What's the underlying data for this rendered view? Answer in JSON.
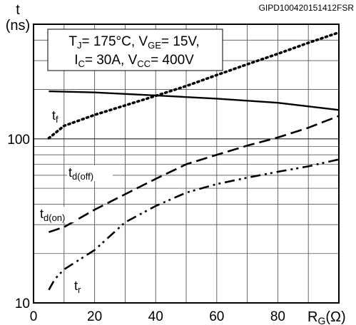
{
  "figure_id": "GIPD100420151412FSR",
  "y_axis_title_line1": "t",
  "y_axis_title_line2": "(ns)",
  "x_axis_title_main": "R",
  "x_axis_title_sub": "G",
  "x_axis_title_unit": "(Ω)",
  "conditions": {
    "line1": [
      {
        "text": "T",
        "sub": false
      },
      {
        "text": "J",
        "sub": true
      },
      {
        "text": "= 175°C, V",
        "sub": false
      },
      {
        "text": "GE",
        "sub": true
      },
      {
        "text": "= 15V,",
        "sub": false
      }
    ],
    "line2": [
      {
        "text": "I",
        "sub": false
      },
      {
        "text": "C",
        "sub": true
      },
      {
        "text": "= 30A, V",
        "sub": false
      },
      {
        "text": "CC",
        "sub": true
      },
      {
        "text": "= 400V",
        "sub": false
      }
    ]
  },
  "chart_data": {
    "type": "line",
    "x_scale": "linear",
    "y_scale": "log",
    "xlim": [
      0,
      100
    ],
    "ylim": [
      10,
      500
    ],
    "x_ticks": [
      "0",
      "20",
      "40",
      "60",
      "80"
    ],
    "y_ticks": [
      {
        "value": 10,
        "label": "10"
      },
      {
        "value": 100,
        "label": "100"
      }
    ],
    "grid": true,
    "series": [
      {
        "name": "tf",
        "label_main": "t",
        "label_sub": "f",
        "style": "solid",
        "x": [
          5,
          20,
          40,
          60,
          80,
          100
        ],
        "y": [
          195,
          192,
          184,
          176,
          166,
          150
        ]
      },
      {
        "name": "td(off)",
        "label_main": "t",
        "label_sub": "d(off)",
        "style": "dotted",
        "x": [
          5,
          10,
          20,
          30,
          40,
          50,
          60,
          70,
          80,
          90,
          100
        ],
        "y": [
          101,
          120,
          140,
          160,
          183,
          210,
          245,
          285,
          330,
          385,
          445
        ]
      },
      {
        "name": "td(on)",
        "label_main": "t",
        "label_sub": "d(on)",
        "style": "dashed",
        "x": [
          5,
          10,
          20,
          30,
          40,
          50,
          60,
          70,
          80,
          90,
          100
        ],
        "y": [
          27,
          29,
          37,
          46,
          57,
          70,
          80,
          91,
          102,
          117,
          138
        ]
      },
      {
        "name": "tr",
        "label_main": "t",
        "label_sub": "r",
        "style": "dashdotdot",
        "x": [
          5,
          7,
          10,
          20,
          30,
          40,
          50,
          60,
          70,
          80,
          90,
          100
        ],
        "y": [
          12,
          14,
          16,
          21,
          31,
          39,
          47,
          53,
          58,
          63,
          68,
          75
        ]
      }
    ]
  }
}
